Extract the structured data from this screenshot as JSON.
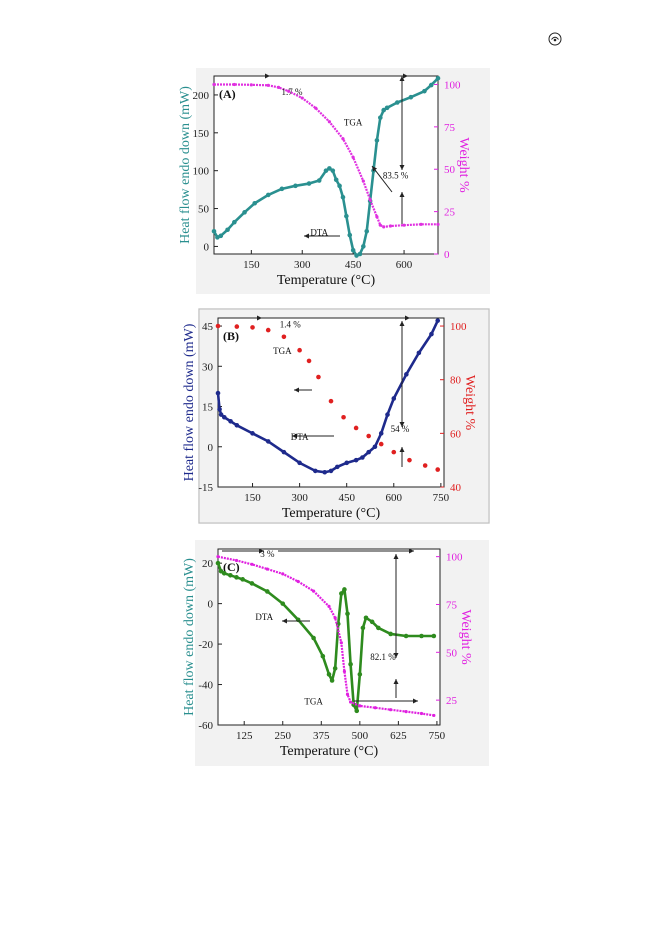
{
  "page": {
    "corner_icon": "circled-symbol-icon"
  },
  "chart_data": [
    {
      "type": "line",
      "panel_label": "(A)",
      "xlabel": "Temperature (°C)",
      "ylabel_left": "Heat flow endo down (mW)",
      "ylabel_right": "Weight %",
      "xlim": [
        40,
        700
      ],
      "ylim_left": [
        -10,
        225
      ],
      "ylim_right": [
        0,
        105
      ],
      "xticks": [
        150,
        300,
        450,
        600
      ],
      "yticks_left": [
        0,
        50,
        100,
        150,
        200
      ],
      "yticks_right": [
        0,
        25,
        50,
        75,
        100
      ],
      "colors": {
        "left_axis": "#2a8f8f",
        "right_axis": "#e020e0",
        "DTA": "#2a9090",
        "TGA": "#e030e0"
      },
      "series": [
        {
          "name": "DTA",
          "axis": "left",
          "x": [
            40,
            50,
            60,
            80,
            100,
            130,
            160,
            200,
            240,
            280,
            320,
            350,
            370,
            380,
            390,
            400,
            410,
            420,
            430,
            440,
            450,
            460,
            470,
            480,
            490,
            500,
            510,
            520,
            530,
            540,
            550,
            580,
            620,
            660,
            680,
            700
          ],
          "y": [
            20,
            12,
            14,
            22,
            32,
            45,
            57,
            68,
            76,
            80,
            83,
            87,
            100,
            103,
            100,
            88,
            80,
            65,
            40,
            15,
            -5,
            -12,
            -10,
            0,
            20,
            60,
            100,
            140,
            170,
            180,
            183,
            190,
            197,
            205,
            213,
            222
          ]
        },
        {
          "name": "TGA",
          "axis": "right",
          "x": [
            40,
            100,
            150,
            200,
            230,
            260,
            300,
            340,
            380,
            420,
            450,
            480,
            500,
            520,
            530,
            540,
            560,
            600,
            650,
            700
          ],
          "y": [
            100,
            100,
            99.8,
            99.5,
            98.3,
            96,
            92,
            86,
            78,
            68,
            57,
            43,
            32,
            22,
            17,
            16,
            16.5,
            17,
            17.5,
            17.5
          ]
        }
      ],
      "annotations": [
        {
          "text": "1.7 %",
          "x": 270,
          "y": 205
        },
        {
          "text": "TGA",
          "x": 450,
          "y": 165
        },
        {
          "text": "83.5 %",
          "x": 575,
          "y": 95
        },
        {
          "text": "DTA",
          "x": 350,
          "y": 20
        }
      ]
    },
    {
      "type": "scatter",
      "panel_label": "(B)",
      "xlabel": "Temperature (°C)",
      "ylabel_left": "Heat flow endo down (mW)",
      "ylabel_right": "Weight %",
      "xlim": [
        40,
        760
      ],
      "ylim_left": [
        -15,
        48
      ],
      "ylim_right": [
        40,
        103
      ],
      "xticks": [
        150,
        300,
        450,
        600,
        750
      ],
      "yticks_left": [
        -15,
        0,
        15,
        30,
        45
      ],
      "yticks_right": [
        40,
        60,
        80,
        100
      ],
      "colors": {
        "left_axis": "#1e2a8c",
        "right_axis": "#e02020",
        "DTA": "#1e2a8c",
        "TGA": "#e02020"
      },
      "series": [
        {
          "name": "DTA",
          "axis": "left",
          "x": [
            40,
            45,
            50,
            60,
            80,
            100,
            150,
            200,
            250,
            300,
            350,
            380,
            400,
            420,
            450,
            480,
            500,
            520,
            540,
            560,
            580,
            600,
            640,
            680,
            720,
            740
          ],
          "y": [
            20,
            14,
            12,
            11,
            9.5,
            8,
            5,
            2,
            -2,
            -6,
            -9,
            -9.5,
            -9,
            -7.5,
            -6,
            -5,
            -4,
            -2,
            0,
            5,
            12,
            18,
            27,
            35,
            42,
            47
          ]
        },
        {
          "name": "TGA",
          "axis": "right",
          "x": [
            40,
            100,
            150,
            200,
            250,
            300,
            330,
            360,
            400,
            440,
            480,
            520,
            560,
            600,
            650,
            700,
            740
          ],
          "y": [
            100,
            99.8,
            99.5,
            98.5,
            96,
            91,
            87,
            81,
            72,
            66,
            62,
            59,
            56,
            53,
            50,
            48,
            46.5
          ]
        }
      ],
      "annotations": [
        {
          "text": "1.4 %",
          "x": 270,
          "y": 46
        },
        {
          "text": "TGA",
          "x": 245,
          "y": 36
        },
        {
          "text": "DTA",
          "x": 300,
          "y": 4
        },
        {
          "text": "54 %",
          "x": 620,
          "y": 7
        }
      ]
    },
    {
      "type": "line",
      "panel_label": "(C)",
      "xlabel": "Temperature (°C)",
      "ylabel_left": "Heat flow endo down (mW)",
      "ylabel_right": "Weight %",
      "xlim": [
        40,
        760
      ],
      "ylim_left": [
        -60,
        27
      ],
      "ylim_right": [
        12,
        104
      ],
      "xticks": [
        125,
        250,
        375,
        500,
        625,
        750
      ],
      "yticks_left": [
        -60,
        -40,
        -20,
        0,
        20
      ],
      "yticks_right": [
        25,
        50,
        75,
        100
      ],
      "colors": {
        "left_axis": "#2a8f8f",
        "right_axis": "#e020e0",
        "DTA": "#2e8b1e",
        "TGA": "#e020e0"
      },
      "series": [
        {
          "name": "DTA",
          "axis": "left",
          "x": [
            40,
            50,
            60,
            80,
            100,
            120,
            150,
            200,
            250,
            300,
            350,
            380,
            400,
            410,
            420,
            430,
            440,
            450,
            460,
            470,
            480,
            490,
            500,
            510,
            520,
            540,
            560,
            600,
            650,
            700,
            740
          ],
          "y": [
            20,
            16,
            15,
            14,
            13,
            12,
            10,
            6,
            0,
            -8,
            -17,
            -26,
            -35,
            -38,
            -32,
            -10,
            5,
            7,
            -5,
            -30,
            -50,
            -53,
            -35,
            -12,
            -7,
            -9,
            -12,
            -15,
            -16,
            -16,
            -16
          ]
        },
        {
          "name": "TGA",
          "axis": "right",
          "x": [
            40,
            100,
            150,
            200,
            250,
            300,
            350,
            400,
            420,
            440,
            450,
            460,
            470,
            500,
            550,
            600,
            650,
            700,
            740
          ],
          "y": [
            100,
            98,
            96,
            93.5,
            91,
            87,
            82,
            74,
            68,
            55,
            40,
            28,
            24,
            22,
            21,
            20,
            19,
            18,
            17
          ]
        }
      ],
      "annotations": [
        {
          "text": "3 %",
          "x": 200,
          "y": 25
        },
        {
          "text": "DTA",
          "x": 190,
          "y": -6
        },
        {
          "text": "82.1 %",
          "x": 575,
          "y": -26
        },
        {
          "text": "TGA",
          "x": 350,
          "y": -48
        }
      ]
    }
  ]
}
